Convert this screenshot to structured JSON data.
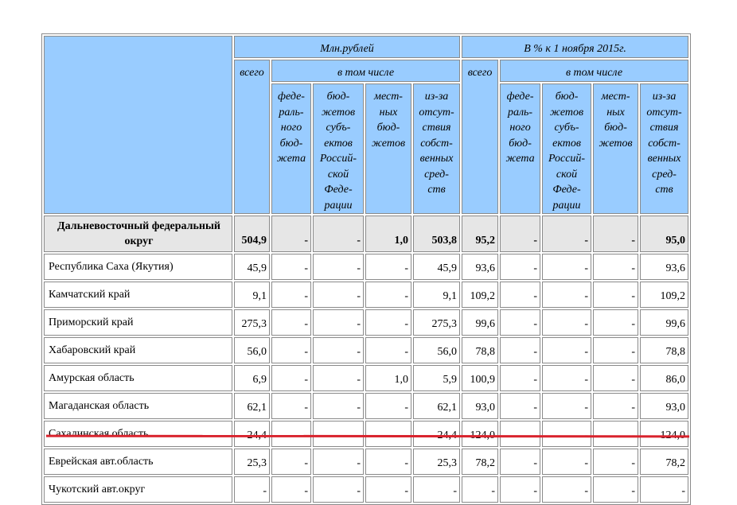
{
  "header": {
    "groups": [
      "Млн.рублей",
      "В % к 1 ноября 2015г."
    ],
    "total": [
      "всего",
      "всего"
    ],
    "including": [
      "в том числе",
      "в том числе"
    ],
    "columns": [
      [
        "феде-",
        "раль-",
        "ного",
        "бюд-",
        "жета"
      ],
      [
        "бюд-",
        "жетов",
        "субъ-",
        "ектов",
        "Россий-",
        "ской",
        "Феде-",
        "рации"
      ],
      [
        "мест-",
        "ных",
        "бюд-",
        "жетов"
      ],
      [
        "из-за",
        "отсут-",
        "ствия",
        "собст-",
        "венных",
        "сред-",
        "ств"
      ],
      [
        "феде-",
        "раль-",
        "ного",
        "бюд-",
        "жета"
      ],
      [
        "бюд-",
        "жетов",
        "субъ-",
        "ектов",
        "Россий-",
        "ской",
        "Феде-",
        "рации"
      ],
      [
        "мест-",
        "ных",
        "бюд-",
        "жетов"
      ],
      [
        "из-за",
        "отсут-",
        "ствия",
        "собст-",
        "венных",
        "сред-",
        "ств"
      ]
    ]
  },
  "table": {
    "rows": [
      {
        "label": "Дальневосточный федеральный округ",
        "bold": true,
        "values": [
          "504,9",
          "-",
          "-",
          "1,0",
          "503,8",
          "95,2",
          "-",
          "-",
          "-",
          "95,0"
        ]
      },
      {
        "label": "Республика Саха (Якутия)",
        "values": [
          "45,9",
          "-",
          "-",
          "-",
          "45,9",
          "93,6",
          "-",
          "-",
          "-",
          "93,6"
        ]
      },
      {
        "label": "Камчатский край",
        "values": [
          "9,1",
          "-",
          "-",
          "-",
          "9,1",
          "109,2",
          "-",
          "-",
          "-",
          "109,2"
        ]
      },
      {
        "label": "Приморский край",
        "values": [
          "275,3",
          "-",
          "-",
          "-",
          "275,3",
          "99,6",
          "-",
          "-",
          "-",
          "99,6"
        ]
      },
      {
        "label": "Хабаровский край",
        "values": [
          "56,0",
          "-",
          "-",
          "-",
          "56,0",
          "78,8",
          "-",
          "-",
          "-",
          "78,8"
        ]
      },
      {
        "label": "Амурская область",
        "values": [
          "6,9",
          "-",
          "-",
          "1,0",
          "5,9",
          "100,9",
          "-",
          "-",
          "-",
          "86,0"
        ]
      },
      {
        "label": "Магаданская область",
        "values": [
          "62,1",
          "-",
          "-",
          "-",
          "62,1",
          "93,0",
          "-",
          "-",
          "-",
          "93,0"
        ]
      },
      {
        "label": "Сахалинская область",
        "values": [
          "24,4",
          "-",
          "-",
          "-",
          "24,4",
          "124,0",
          "-",
          "-",
          "-",
          "124,0"
        ]
      },
      {
        "label": "Еврейская авт.область",
        "values": [
          "25,3",
          "-",
          "-",
          "-",
          "25,3",
          "78,2",
          "-",
          "-",
          "-",
          "78,2"
        ]
      },
      {
        "label": "Чукотский авт.округ",
        "values": [
          "-",
          "-",
          "-",
          "-",
          "-",
          "-",
          "-",
          "-",
          "-",
          "-"
        ]
      }
    ]
  }
}
